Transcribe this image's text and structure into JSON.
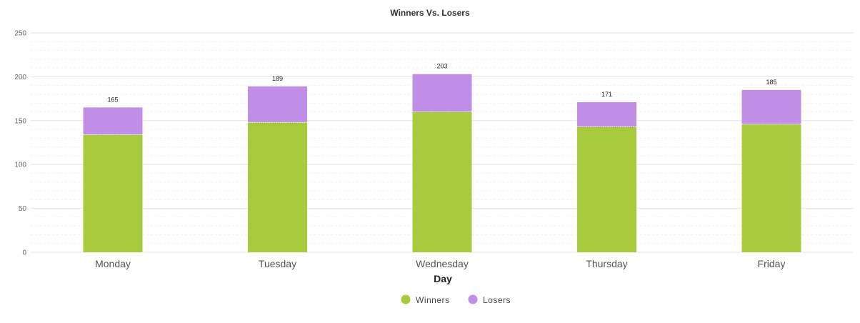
{
  "chart_data": {
    "type": "bar",
    "stacked": true,
    "title": "Winners Vs. Losers",
    "xlabel": "Day",
    "ylabel": "",
    "ylim": [
      0,
      250
    ],
    "yticks": [
      0,
      50,
      100,
      150,
      200,
      250
    ],
    "grid": true,
    "legend_position": "bottom",
    "categories": [
      "Monday",
      "Tuesday",
      "Wednesday",
      "Thursday",
      "Friday"
    ],
    "series": [
      {
        "name": "Winners",
        "color": "#a8cb3e",
        "values": [
          134,
          148,
          160,
          143,
          146
        ]
      },
      {
        "name": "Losers",
        "color": "#c08ee7",
        "values": [
          31,
          41,
          43,
          28,
          39
        ]
      }
    ],
    "totals": [
      "165",
      "189",
      "203",
      "171",
      "185"
    ]
  }
}
